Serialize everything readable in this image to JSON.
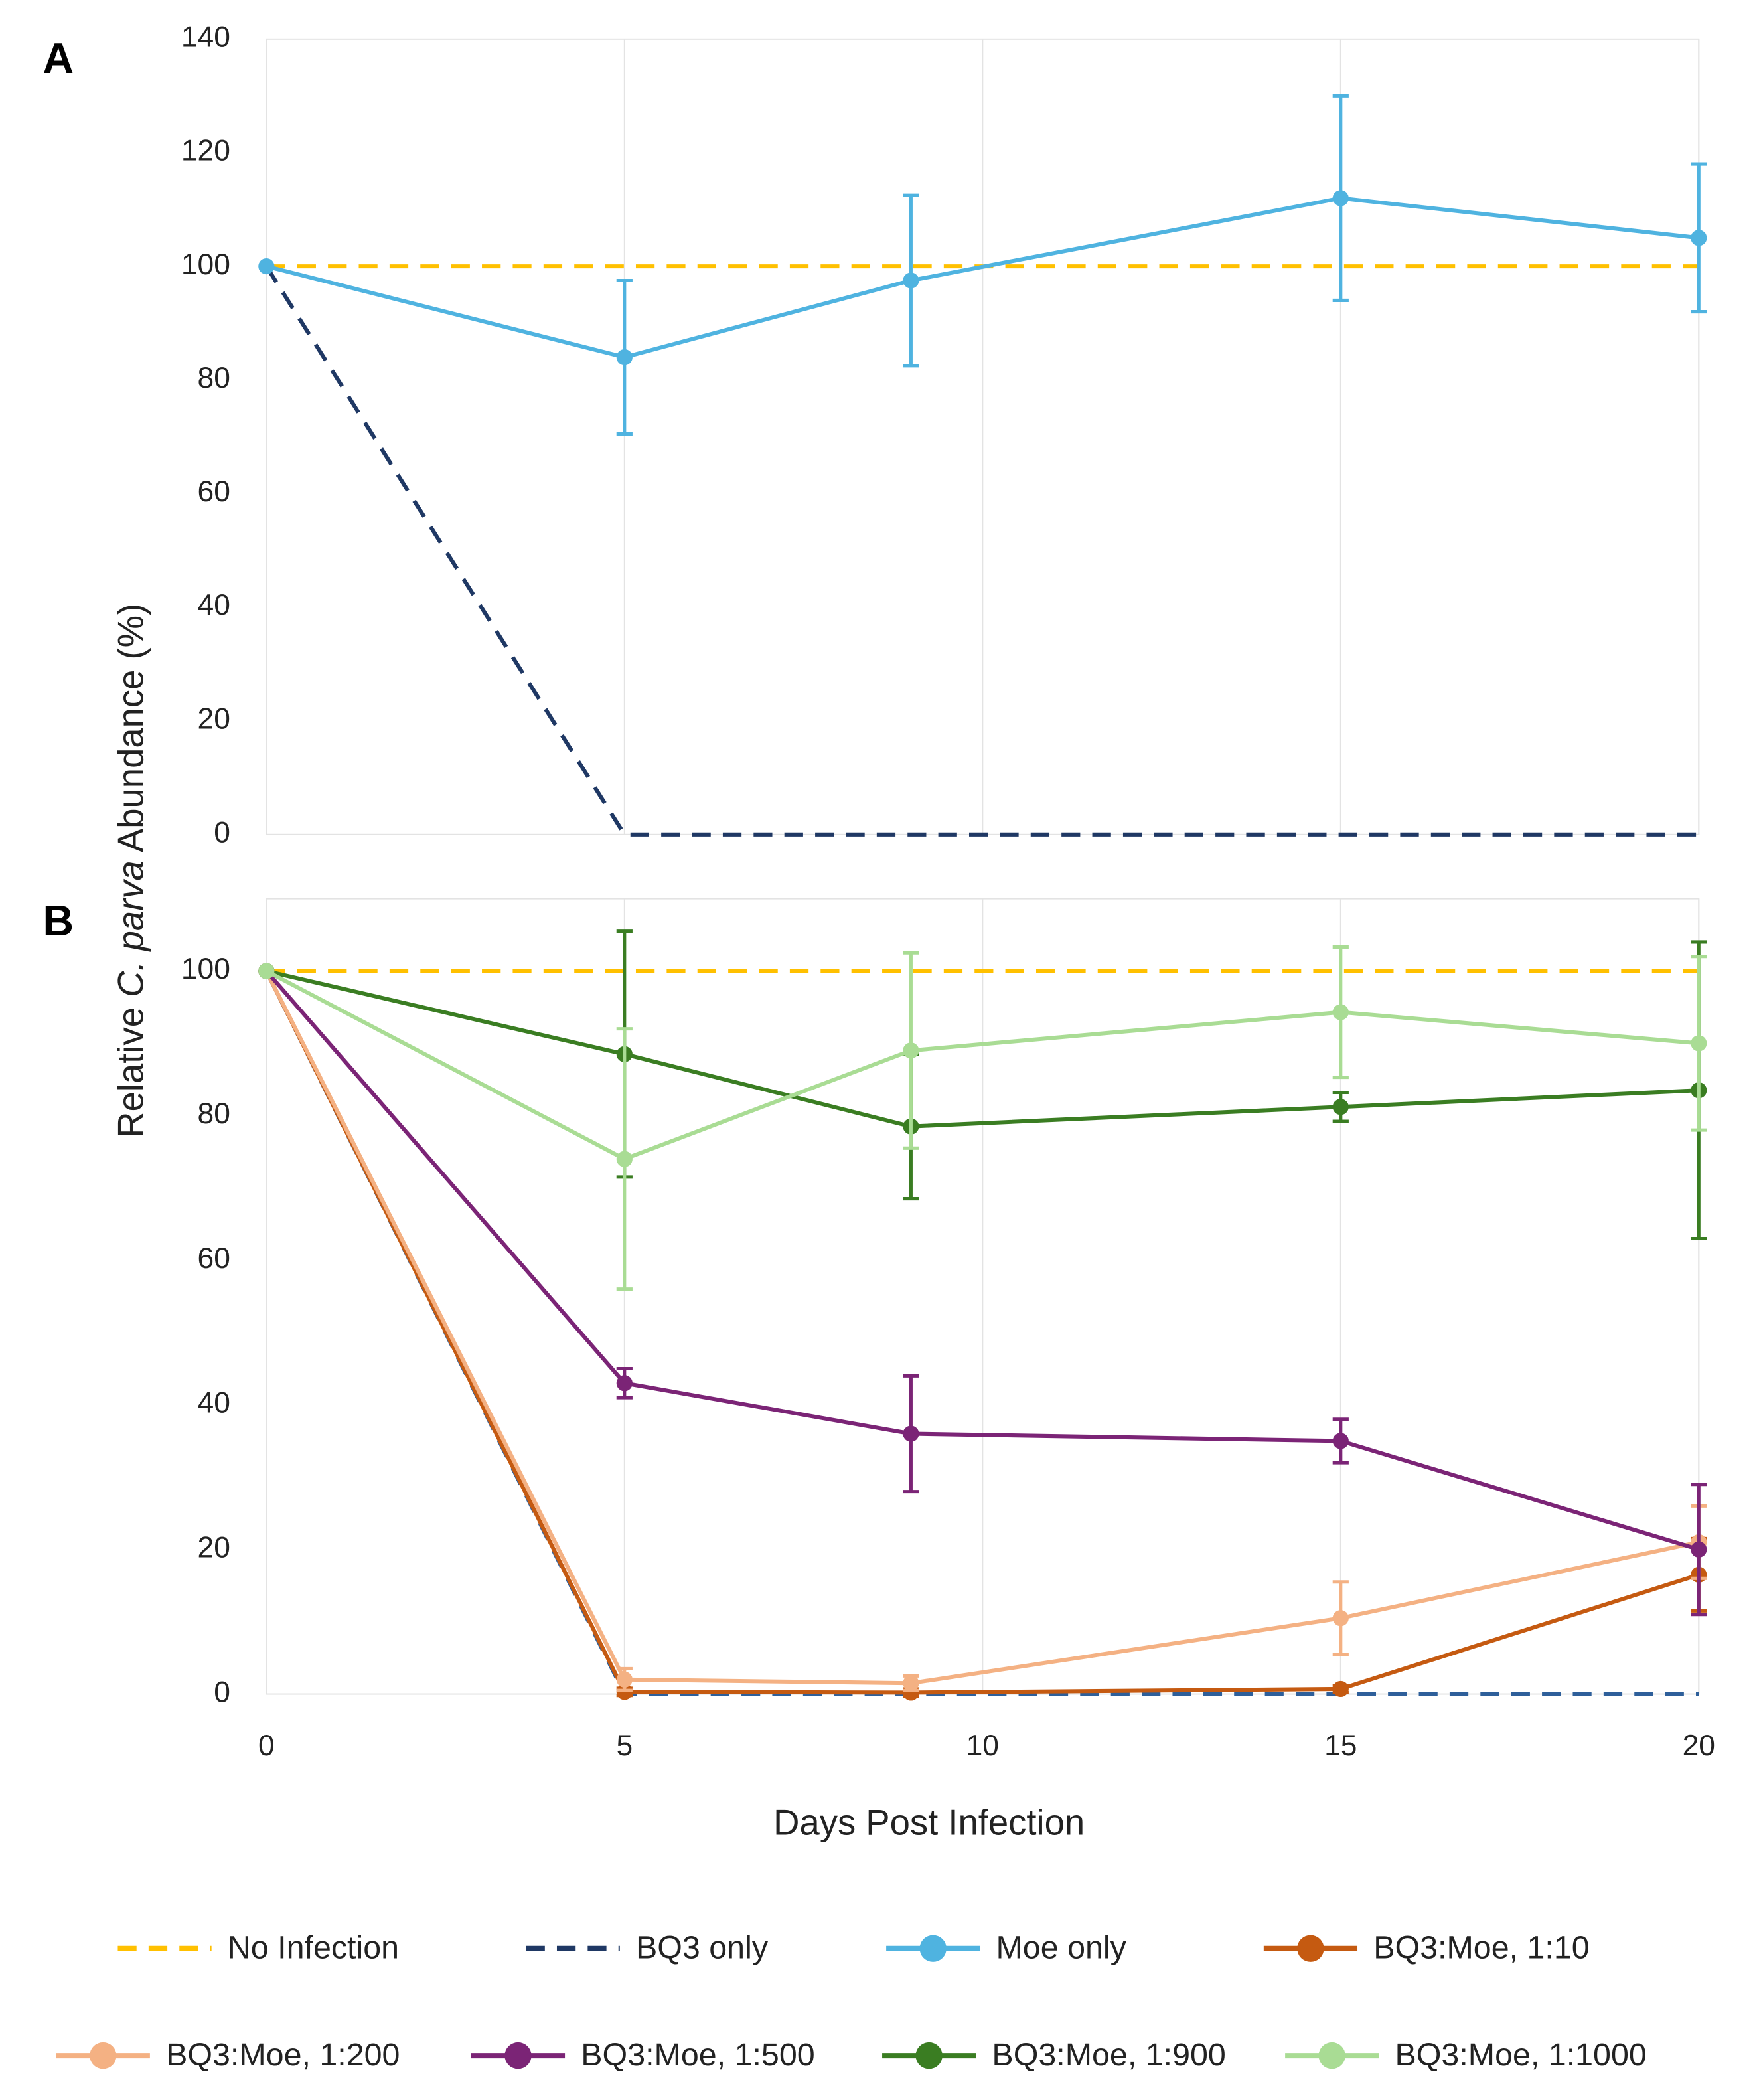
{
  "chart_data": [
    {
      "type": "line",
      "panel": "A",
      "ylabel_parts": [
        "Relative ",
        "C. parva",
        " Abundance (%)"
      ],
      "xlim": [
        0,
        20
      ],
      "xticks": [
        0,
        5,
        10,
        15,
        20
      ],
      "ylim": [
        0,
        140
      ],
      "yticks": [
        0,
        20,
        40,
        60,
        80,
        100,
        120,
        140
      ],
      "grid": "x",
      "series": [
        {
          "name": "No Infection",
          "color": "#ffc000",
          "dashed": true,
          "x": [
            0,
            5,
            9,
            15,
            20
          ],
          "values": [
            100,
            100,
            100,
            100,
            100
          ]
        },
        {
          "name": "BQ3 only",
          "color": "#1f3864",
          "dashed": true,
          "x": [
            0,
            5,
            9,
            15,
            20
          ],
          "values": [
            100,
            0,
            0,
            0,
            0
          ]
        },
        {
          "name": "Moe only",
          "color": "#4fb3e0",
          "markers": true,
          "x": [
            0,
            5,
            9,
            15,
            20
          ],
          "values": [
            100,
            84,
            97.5,
            112,
            105
          ],
          "errors": [
            0,
            13.5,
            15,
            18,
            13
          ]
        }
      ]
    },
    {
      "type": "line",
      "panel": "B",
      "xlabel": "Days Post Infection",
      "xlim": [
        0,
        20
      ],
      "xticks": [
        0,
        5,
        10,
        15,
        20
      ],
      "ylim": [
        0,
        110
      ],
      "yticks": [
        0,
        20,
        40,
        60,
        80,
        100
      ],
      "grid": "x",
      "series": [
        {
          "color": "#ffc000",
          "dashed": true,
          "x": [
            0,
            5,
            9,
            15,
            20
          ],
          "values": [
            100,
            100,
            100,
            100,
            100
          ]
        },
        {
          "color": "#2e5f9a",
          "dashed": true,
          "x": [
            0,
            5,
            9,
            15,
            20
          ],
          "values": [
            100,
            0,
            0,
            0,
            0
          ]
        },
        {
          "name": "BQ3:Moe, 1:10",
          "color": "#c55a11",
          "markers": true,
          "x": [
            0,
            5,
            9,
            15,
            20
          ],
          "values": [
            100,
            0.3,
            0.2,
            0.7,
            16.5
          ],
          "errors": [
            0,
            0.5,
            0.5,
            0.5,
            5
          ]
        },
        {
          "name": "BQ3:Moe, 1:200",
          "color": "#f4b183",
          "markers": true,
          "x": [
            0,
            5,
            9,
            15,
            20
          ],
          "values": [
            100,
            2,
            1.5,
            10.5,
            21
          ],
          "errors": [
            0,
            1.5,
            1,
            5,
            5
          ]
        },
        {
          "name": "BQ3:Moe, 1:500",
          "color": "#7b2476",
          "markers": true,
          "x": [
            0,
            5,
            9,
            15,
            20
          ],
          "values": [
            100,
            43,
            36,
            35,
            20
          ],
          "errors": [
            0,
            2,
            8,
            3,
            9
          ]
        },
        {
          "name": "BQ3:Moe, 1:900",
          "color": "#3a7d22",
          "markers": true,
          "x": [
            0,
            5,
            9,
            15,
            20
          ],
          "values": [
            100,
            88.5,
            78.5,
            81.2,
            83.5
          ],
          "errors": [
            0,
            17,
            10,
            2,
            20.5
          ]
        },
        {
          "name": "BQ3:Moe, 1:1000",
          "color": "#a9dc94",
          "markers": true,
          "x": [
            0,
            5,
            9,
            15,
            20
          ],
          "values": [
            100,
            74,
            89,
            94.3,
            90
          ],
          "errors": [
            0,
            18,
            13.5,
            9,
            12
          ]
        }
      ]
    }
  ]
}
